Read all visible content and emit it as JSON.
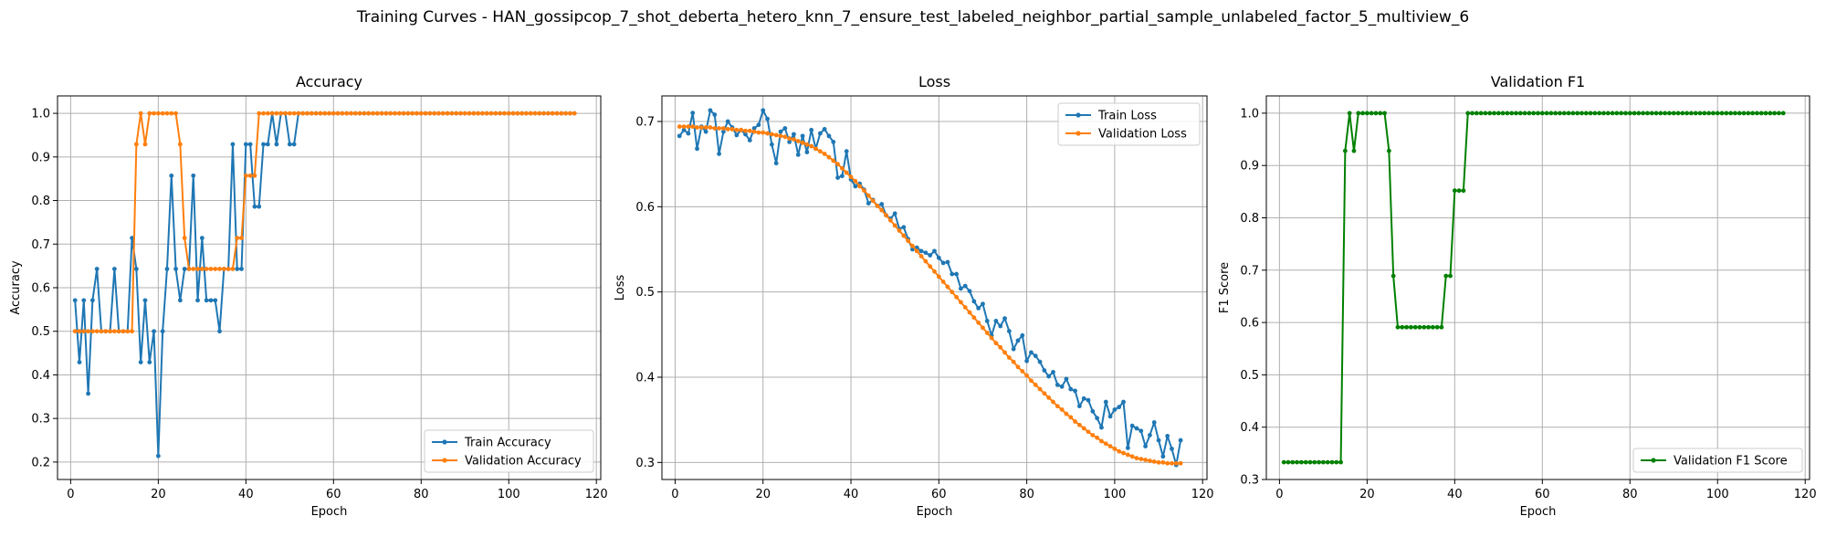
{
  "figure": {
    "title": "Training Curves - HAN_gossipcop_7_shot_deberta_hetero_knn_7_ensure_test_labeled_neighbor_partial_sample_unlabeled_factor_5_multiview_6"
  },
  "colors": {
    "blue": "#1f77b4",
    "orange": "#ff7f0e",
    "green": "#008000",
    "grid": "#b0b0b0"
  },
  "chart_data": [
    {
      "type": "line",
      "title": "Accuracy",
      "xlabel": "Epoch",
      "ylabel": "Accuracy",
      "xlim": [
        -3,
        121
      ],
      "ylim": [
        0.16,
        1.04
      ],
      "xticks": [
        0,
        20,
        40,
        60,
        80,
        100,
        120
      ],
      "yticks": [
        0.2,
        0.3,
        0.4,
        0.5,
        0.6,
        0.7,
        0.8,
        0.9,
        1.0
      ],
      "grid": true,
      "legend_position": "lower right",
      "x": [
        1,
        2,
        3,
        4,
        5,
        6,
        7,
        8,
        9,
        10,
        11,
        12,
        13,
        14,
        15,
        16,
        17,
        18,
        19,
        20,
        21,
        22,
        23,
        24,
        25,
        26,
        27,
        28,
        29,
        30,
        31,
        32,
        33,
        34,
        35,
        36,
        37,
        38,
        39,
        40,
        41,
        42,
        43,
        44,
        45,
        46,
        47,
        48,
        49,
        50,
        51,
        52,
        53,
        54,
        55,
        56,
        57,
        58,
        59,
        60,
        61,
        62,
        63,
        64,
        65,
        66,
        67,
        68,
        69,
        70,
        71,
        72,
        73,
        74,
        75,
        76,
        77,
        78,
        79,
        80,
        81,
        82,
        83,
        84,
        85,
        86,
        87,
        88,
        89,
        90,
        91,
        92,
        93,
        94,
        95,
        96,
        97,
        98,
        99,
        100,
        101,
        102,
        103,
        104,
        105,
        106,
        107,
        108,
        109,
        110,
        111,
        112,
        113,
        114,
        115
      ],
      "series": [
        {
          "name": "Train Accuracy",
          "color": "#1f77b4",
          "values": [
            0.571,
            0.429,
            0.571,
            0.357,
            0.571,
            0.643,
            0.5,
            0.5,
            0.5,
            0.643,
            0.5,
            0.5,
            0.5,
            0.714,
            0.643,
            0.429,
            0.571,
            0.429,
            0.5,
            0.214,
            0.5,
            0.643,
            0.857,
            0.643,
            0.571,
            0.643,
            0.643,
            0.857,
            0.571,
            0.714,
            0.571,
            0.571,
            0.571,
            0.5,
            0.643,
            0.643,
            0.929,
            0.643,
            0.643,
            0.929,
            0.929,
            0.786,
            0.786,
            0.929,
            0.929,
            1.0,
            0.929,
            1.0,
            1.0,
            0.929,
            0.929,
            1.0,
            1.0,
            1.0,
            1.0,
            1.0,
            1.0,
            1.0,
            1.0,
            1.0,
            1.0,
            1.0,
            1.0,
            1.0,
            1.0,
            1.0,
            1.0,
            1.0,
            1.0,
            1.0,
            1.0,
            1.0,
            1.0,
            1.0,
            1.0,
            1.0,
            1.0,
            1.0,
            1.0,
            1.0,
            1.0,
            1.0,
            1.0,
            1.0,
            1.0,
            1.0,
            1.0,
            1.0,
            1.0,
            1.0,
            1.0,
            1.0,
            1.0,
            1.0,
            1.0,
            1.0,
            1.0,
            1.0,
            1.0,
            1.0,
            1.0,
            1.0,
            1.0,
            1.0,
            1.0,
            1.0,
            1.0,
            1.0,
            1.0,
            1.0,
            1.0,
            1.0,
            1.0,
            1.0,
            1.0
          ]
        },
        {
          "name": "Validation Accuracy",
          "color": "#ff7f0e",
          "values": [
            0.5,
            0.5,
            0.5,
            0.5,
            0.5,
            0.5,
            0.5,
            0.5,
            0.5,
            0.5,
            0.5,
            0.5,
            0.5,
            0.5,
            0.929,
            1.0,
            0.929,
            1.0,
            1.0,
            1.0,
            1.0,
            1.0,
            1.0,
            1.0,
            0.929,
            0.714,
            0.643,
            0.643,
            0.643,
            0.643,
            0.643,
            0.643,
            0.643,
            0.643,
            0.643,
            0.643,
            0.643,
            0.714,
            0.714,
            0.857,
            0.857,
            0.857,
            1.0,
            1.0,
            1.0,
            1.0,
            1.0,
            1.0,
            1.0,
            1.0,
            1.0,
            1.0,
            1.0,
            1.0,
            1.0,
            1.0,
            1.0,
            1.0,
            1.0,
            1.0,
            1.0,
            1.0,
            1.0,
            1.0,
            1.0,
            1.0,
            1.0,
            1.0,
            1.0,
            1.0,
            1.0,
            1.0,
            1.0,
            1.0,
            1.0,
            1.0,
            1.0,
            1.0,
            1.0,
            1.0,
            1.0,
            1.0,
            1.0,
            1.0,
            1.0,
            1.0,
            1.0,
            1.0,
            1.0,
            1.0,
            1.0,
            1.0,
            1.0,
            1.0,
            1.0,
            1.0,
            1.0,
            1.0,
            1.0,
            1.0,
            1.0,
            1.0,
            1.0,
            1.0,
            1.0,
            1.0,
            1.0,
            1.0,
            1.0,
            1.0,
            1.0,
            1.0,
            1.0,
            1.0,
            1.0
          ]
        }
      ]
    },
    {
      "type": "line",
      "title": "Loss",
      "xlabel": "Epoch",
      "ylabel": "Loss",
      "xlim": [
        -3,
        121
      ],
      "ylim": [
        0.28,
        0.73
      ],
      "xticks": [
        0,
        20,
        40,
        60,
        80,
        100,
        120
      ],
      "yticks": [
        0.3,
        0.4,
        0.5,
        0.6,
        0.7
      ],
      "grid": true,
      "legend_position": "upper right",
      "x": [
        1,
        2,
        3,
        4,
        5,
        6,
        7,
        8,
        9,
        10,
        11,
        12,
        13,
        14,
        15,
        16,
        17,
        18,
        19,
        20,
        21,
        22,
        23,
        24,
        25,
        26,
        27,
        28,
        29,
        30,
        31,
        32,
        33,
        34,
        35,
        36,
        37,
        38,
        39,
        40,
        41,
        42,
        43,
        44,
        45,
        46,
        47,
        48,
        49,
        50,
        51,
        52,
        53,
        54,
        55,
        56,
        57,
        58,
        59,
        60,
        61,
        62,
        63,
        64,
        65,
        66,
        67,
        68,
        69,
        70,
        71,
        72,
        73,
        74,
        75,
        76,
        77,
        78,
        79,
        80,
        81,
        82,
        83,
        84,
        85,
        86,
        87,
        88,
        89,
        90,
        91,
        92,
        93,
        94,
        95,
        96,
        97,
        98,
        99,
        100,
        101,
        102,
        103,
        104,
        105,
        106,
        107,
        108,
        109,
        110,
        111,
        112,
        113,
        114,
        115
      ],
      "series": [
        {
          "name": "Train Loss",
          "color": "#1f77b4",
          "values": [
            0.683,
            0.69,
            0.686,
            0.71,
            0.668,
            0.694,
            0.688,
            0.713,
            0.708,
            0.662,
            0.688,
            0.7,
            0.693,
            0.684,
            0.69,
            0.685,
            0.678,
            0.692,
            0.696,
            0.713,
            0.703,
            0.673,
            0.651,
            0.688,
            0.692,
            0.676,
            0.685,
            0.661,
            0.683,
            0.664,
            0.69,
            0.668,
            0.686,
            0.691,
            0.683,
            0.676,
            0.634,
            0.636,
            0.665,
            0.632,
            0.624,
            0.627,
            0.62,
            0.604,
            0.608,
            0.601,
            0.603,
            0.59,
            0.586,
            0.592,
            0.574,
            0.576,
            0.562,
            0.55,
            0.552,
            0.548,
            0.546,
            0.543,
            0.548,
            0.54,
            0.534,
            0.535,
            0.521,
            0.521,
            0.504,
            0.507,
            0.501,
            0.489,
            0.481,
            0.486,
            0.466,
            0.449,
            0.466,
            0.46,
            0.469,
            0.454,
            0.433,
            0.443,
            0.449,
            0.419,
            0.429,
            0.425,
            0.418,
            0.408,
            0.401,
            0.406,
            0.391,
            0.389,
            0.398,
            0.386,
            0.384,
            0.366,
            0.375,
            0.373,
            0.36,
            0.352,
            0.341,
            0.371,
            0.354,
            0.362,
            0.365,
            0.371,
            0.317,
            0.343,
            0.34,
            0.337,
            0.319,
            0.332,
            0.347,
            0.326,
            0.307,
            0.331,
            0.316,
            0.297,
            0.326
          ]
        },
        {
          "name": "Validation Loss",
          "color": "#ff7f0e",
          "values": [
            0.694,
            0.694,
            0.694,
            0.694,
            0.693,
            0.693,
            0.693,
            0.693,
            0.692,
            0.692,
            0.692,
            0.691,
            0.691,
            0.69,
            0.69,
            0.689,
            0.689,
            0.688,
            0.687,
            0.687,
            0.686,
            0.685,
            0.684,
            0.683,
            0.682,
            0.68,
            0.679,
            0.677,
            0.675,
            0.673,
            0.671,
            0.668,
            0.665,
            0.662,
            0.658,
            0.654,
            0.65,
            0.645,
            0.64,
            0.635,
            0.63,
            0.624,
            0.619,
            0.613,
            0.607,
            0.601,
            0.596,
            0.59,
            0.584,
            0.578,
            0.572,
            0.566,
            0.56,
            0.554,
            0.548,
            0.542,
            0.536,
            0.53,
            0.524,
            0.518,
            0.512,
            0.506,
            0.5,
            0.494,
            0.488,
            0.482,
            0.476,
            0.47,
            0.464,
            0.458,
            0.452,
            0.446,
            0.44,
            0.435,
            0.429,
            0.423,
            0.418,
            0.412,
            0.407,
            0.402,
            0.396,
            0.391,
            0.386,
            0.381,
            0.376,
            0.371,
            0.366,
            0.362,
            0.357,
            0.353,
            0.348,
            0.344,
            0.34,
            0.336,
            0.332,
            0.329,
            0.325,
            0.322,
            0.319,
            0.316,
            0.313,
            0.311,
            0.309,
            0.307,
            0.305,
            0.304,
            0.303,
            0.302,
            0.301,
            0.3,
            0.3,
            0.299,
            0.299,
            0.299,
            0.299
          ]
        }
      ]
    },
    {
      "type": "line",
      "title": "Validation F1",
      "xlabel": "Epoch",
      "ylabel": "F1 Score",
      "xlim": [
        -3,
        121
      ],
      "ylim": [
        0.3,
        1.033
      ],
      "xticks": [
        0,
        20,
        40,
        60,
        80,
        100,
        120
      ],
      "yticks": [
        0.3,
        0.4,
        0.5,
        0.6,
        0.7,
        0.8,
        0.9,
        1.0
      ],
      "grid": true,
      "legend_position": "lower right",
      "x": [
        1,
        2,
        3,
        4,
        5,
        6,
        7,
        8,
        9,
        10,
        11,
        12,
        13,
        14,
        15,
        16,
        17,
        18,
        19,
        20,
        21,
        22,
        23,
        24,
        25,
        26,
        27,
        28,
        29,
        30,
        31,
        32,
        33,
        34,
        35,
        36,
        37,
        38,
        39,
        40,
        41,
        42,
        43,
        44,
        45,
        46,
        47,
        48,
        49,
        50,
        51,
        52,
        53,
        54,
        55,
        56,
        57,
        58,
        59,
        60,
        61,
        62,
        63,
        64,
        65,
        66,
        67,
        68,
        69,
        70,
        71,
        72,
        73,
        74,
        75,
        76,
        77,
        78,
        79,
        80,
        81,
        82,
        83,
        84,
        85,
        86,
        87,
        88,
        89,
        90,
        91,
        92,
        93,
        94,
        95,
        96,
        97,
        98,
        99,
        100,
        101,
        102,
        103,
        104,
        105,
        106,
        107,
        108,
        109,
        110,
        111,
        112,
        113,
        114,
        115
      ],
      "series": [
        {
          "name": "Validation F1 Score",
          "color": "#008000",
          "values": [
            0.333,
            0.333,
            0.333,
            0.333,
            0.333,
            0.333,
            0.333,
            0.333,
            0.333,
            0.333,
            0.333,
            0.333,
            0.333,
            0.333,
            0.928,
            1.0,
            0.928,
            1.0,
            1.0,
            1.0,
            1.0,
            1.0,
            1.0,
            1.0,
            0.928,
            0.689,
            0.591,
            0.591,
            0.591,
            0.591,
            0.591,
            0.591,
            0.591,
            0.591,
            0.591,
            0.591,
            0.591,
            0.689,
            0.689,
            0.852,
            0.852,
            0.852,
            1.0,
            1.0,
            1.0,
            1.0,
            1.0,
            1.0,
            1.0,
            1.0,
            1.0,
            1.0,
            1.0,
            1.0,
            1.0,
            1.0,
            1.0,
            1.0,
            1.0,
            1.0,
            1.0,
            1.0,
            1.0,
            1.0,
            1.0,
            1.0,
            1.0,
            1.0,
            1.0,
            1.0,
            1.0,
            1.0,
            1.0,
            1.0,
            1.0,
            1.0,
            1.0,
            1.0,
            1.0,
            1.0,
            1.0,
            1.0,
            1.0,
            1.0,
            1.0,
            1.0,
            1.0,
            1.0,
            1.0,
            1.0,
            1.0,
            1.0,
            1.0,
            1.0,
            1.0,
            1.0,
            1.0,
            1.0,
            1.0,
            1.0,
            1.0,
            1.0,
            1.0,
            1.0,
            1.0,
            1.0,
            1.0,
            1.0,
            1.0,
            1.0,
            1.0,
            1.0,
            1.0,
            1.0,
            1.0
          ]
        }
      ]
    }
  ]
}
